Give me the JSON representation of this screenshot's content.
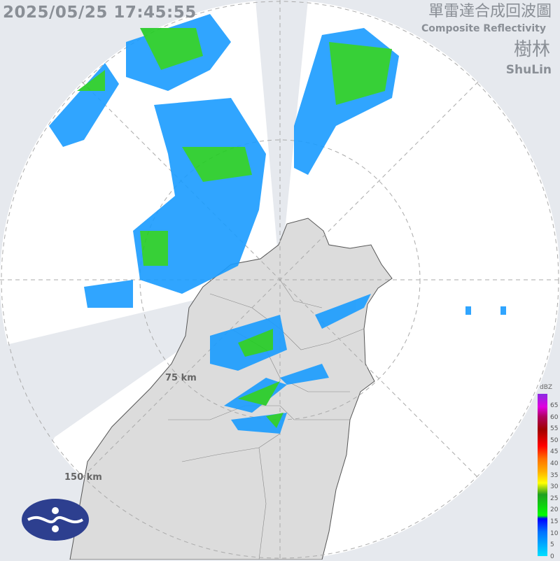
{
  "header": {
    "timestamp": "2025/05/25 17:45:55",
    "title_zh": "單雷達合成回波圖",
    "title_en": "Composite Reflectivity",
    "station_zh": "樹林",
    "station_en": "ShuLin"
  },
  "range_labels": [
    "75 km",
    "150 km"
  ],
  "legend": {
    "unit": "dBZ",
    "ticks": [
      "65",
      "60",
      "55",
      "50",
      "45",
      "40",
      "35",
      "30",
      "25",
      "20",
      "15",
      "10",
      "5",
      "0"
    ]
  },
  "colors": {
    "background": "#e6e9ee",
    "radar_disk": "#ffffff",
    "land": "#dcdcdc",
    "blocked": "#e6e9ee"
  },
  "logo": "CWA"
}
